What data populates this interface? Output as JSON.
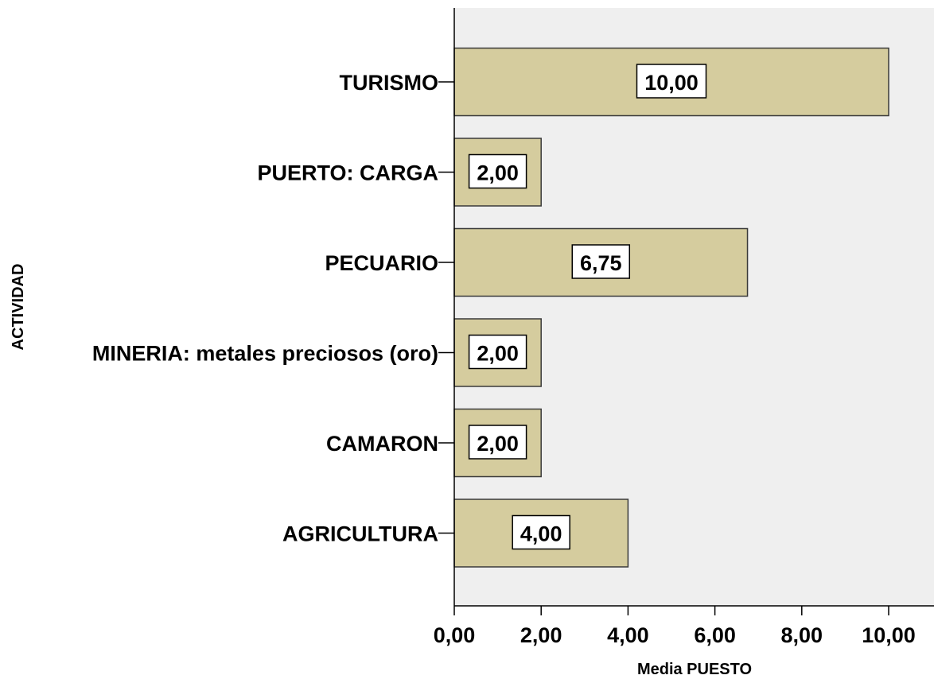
{
  "chart_data": {
    "type": "bar",
    "orientation": "horizontal",
    "categories": [
      "TURISMO",
      "PUERTO: CARGA",
      "PECUARIO",
      "MINERIA: metales preciosos (oro)",
      "CAMARON",
      "AGRICULTURA"
    ],
    "values": [
      10.0,
      2.0,
      6.75,
      2.0,
      2.0,
      4.0
    ],
    "data_labels": [
      "10,00",
      "2,00",
      "6,75",
      "2,00",
      "2,00",
      "4,00"
    ],
    "xlabel": "Media PUESTO",
    "ylabel": "ACTIVIDAD",
    "xlim": [
      0,
      11.2
    ],
    "xticks": [
      0,
      2,
      4,
      6,
      8,
      10
    ],
    "xtick_labels": [
      "0,00",
      "2,00",
      "4,00",
      "6,00",
      "8,00",
      "10,00"
    ],
    "grid": false,
    "colors": {
      "bar_fill": "#d5cc9e",
      "bar_stroke": "#3a3a3a",
      "plot_background": "#efefef",
      "label_box": "#ffffff"
    }
  }
}
